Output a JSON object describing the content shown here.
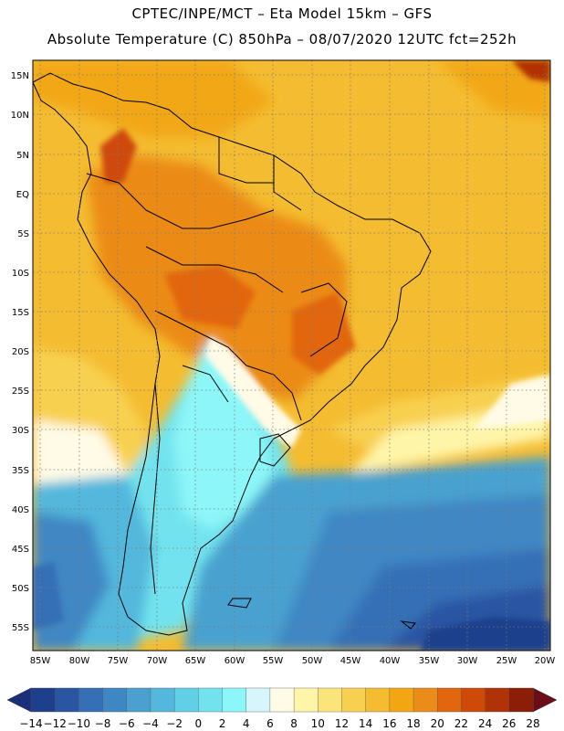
{
  "header": {
    "line1": "CPTEC/INPE/MCT –  Eta Model 15km – GFS",
    "line2": "Absolute Temperature (C) 850hPa – 08/07/2020 12UTC fct=252h"
  },
  "map": {
    "region": "South America",
    "lat_labels": [
      "15N",
      "10N",
      "5N",
      "EQ",
      "5S",
      "10S",
      "15S",
      "20S",
      "25S",
      "30S",
      "35S",
      "40S",
      "45S",
      "50S",
      "55S"
    ],
    "lon_labels": [
      "85W",
      "80W",
      "75W",
      "70W",
      "65W",
      "60W",
      "55W",
      "50W",
      "45W",
      "40W",
      "35W",
      "30W",
      "25W",
      "20W"
    ]
  },
  "colorbar": {
    "labels": [
      "-14",
      "-12",
      "-10",
      "-8",
      "-6",
      "-4",
      "-2",
      "0",
      "2",
      "4",
      "6",
      "8",
      "10",
      "12",
      "14",
      "16",
      "18",
      "20",
      "22",
      "24",
      "26",
      "28"
    ],
    "colors": [
      "#1e3f8c",
      "#2a55a2",
      "#3570b6",
      "#3f87c4",
      "#4aa1cf",
      "#53b8dc",
      "#5fd0e6",
      "#72e3ee",
      "#8df6f8",
      "#d6f6fb",
      "#fffbe6",
      "#fff5a8",
      "#fbe479",
      "#f8d04f",
      "#f4bc30",
      "#f2a712",
      "#eb8b18",
      "#e2660e",
      "#cf4a08",
      "#b13206",
      "#8c1d06"
    ],
    "under_color": "#1a2f7a",
    "over_color": "#6b0e17"
  }
}
